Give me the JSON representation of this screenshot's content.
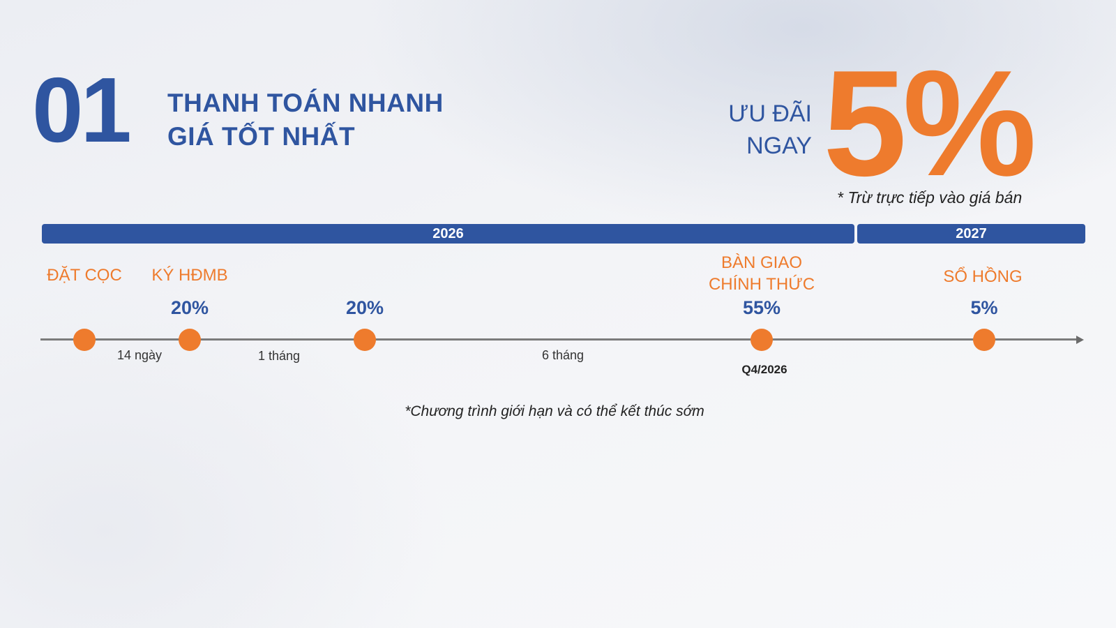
{
  "section": {
    "number": "01",
    "title_line1": "THANH TOÁN NHANH",
    "title_line2": "GIÁ TỐT NHẤT"
  },
  "promo": {
    "label_line1": "ƯU ĐÃI",
    "label_line2": "NGAY",
    "value": "5%",
    "note": "* Trừ trực tiếp vào giá bán"
  },
  "years": [
    {
      "label": "2026"
    },
    {
      "label": "2027"
    }
  ],
  "milestones": [
    {
      "label_line1": "ĐẶT CỌC",
      "label_line2": "",
      "percent": ""
    },
    {
      "label_line1": "KÝ HĐMB",
      "label_line2": "",
      "percent": "20%"
    },
    {
      "label_line1": "",
      "label_line2": "",
      "percent": "20%"
    },
    {
      "label_line1": "BÀN GIAO",
      "label_line2": "CHÍNH THỨC",
      "percent": "55%",
      "date": "Q4/2026"
    },
    {
      "label_line1": "SỔ HỒNG",
      "label_line2": "",
      "percent": "5%"
    }
  ],
  "intervals": [
    "14 ngày",
    "1 tháng",
    "6 tháng"
  ],
  "disclaimer": "*Chương trình giới hạn và có thể kết thúc sớm",
  "colors": {
    "primary_blue": "#2f55a0",
    "accent_orange": "#ee7b2d",
    "axis_gray": "#7b7b7b"
  }
}
